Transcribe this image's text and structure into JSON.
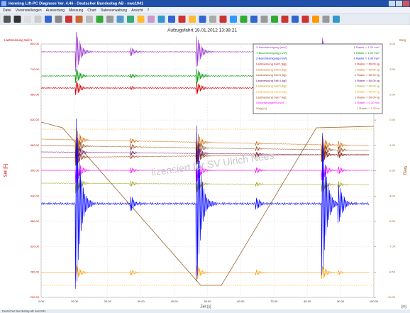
{
  "window": {
    "title": "Henning Lift-PC Diagnose Ver. 4.46 - Deutscher Bundestag AB - nws1941",
    "menu": [
      "Datei",
      "Voreinstellungen",
      "Auswertung",
      "Messung",
      "Chart",
      "Datenverwaltung",
      "Ansicht",
      "?"
    ],
    "status": "Deutscher Bundestag AB nws1941"
  },
  "chart": {
    "title": "Aufzugsfahrt 19.01.2012 13:38:21",
    "watermark": "lizensiert für SV Ulrich Nees",
    "left_label": "Lastmessung Seil 1",
    "right_label": "Weg",
    "y_axis_name": "Seil [F]",
    "y2_axis_name": "Weg",
    "x_label": "Zeit [s]",
    "x_unit": "[s]",
    "y2_unit": "[m]",
    "xlim": [
      0,
      100
    ],
    "ylim": [
      200,
      800
    ],
    "y2lim": [
      -10,
      5
    ],
    "xticks": [
      {
        "value": 0,
        "label": "0.00"
      },
      {
        "value": 10,
        "label": "10.00"
      },
      {
        "value": 20,
        "label": "20.00"
      },
      {
        "value": 30,
        "label": "30.00"
      },
      {
        "value": 40,
        "label": "40.00"
      },
      {
        "value": 50,
        "label": "50.00"
      },
      {
        "value": 60,
        "label": "60.00"
      },
      {
        "value": 70,
        "label": "70.00"
      },
      {
        "value": 80,
        "label": "80.00"
      },
      {
        "value": 90,
        "label": "90.00"
      },
      {
        "value": 100,
        "label": "100.00"
      }
    ],
    "yticks": [
      {
        "value": 800,
        "label": "800.00"
      },
      {
        "value": 740,
        "label": "740.00"
      },
      {
        "value": 680,
        "label": "680.00"
      },
      {
        "value": 620,
        "label": "620.00"
      },
      {
        "value": 560,
        "label": "560.00"
      },
      {
        "value": 500,
        "label": "500.00"
      },
      {
        "value": 440,
        "label": "440.00"
      },
      {
        "value": 380,
        "label": "380.00"
      },
      {
        "value": 320,
        "label": "320.00"
      },
      {
        "value": 260,
        "label": "260.00"
      },
      {
        "value": 200,
        "label": "200.00"
      }
    ],
    "y2ticks": [
      {
        "value": 5,
        "label": "5.00"
      },
      {
        "value": 3.5,
        "label": "3.50"
      },
      {
        "value": 2,
        "label": "2.00"
      },
      {
        "value": 0.5,
        "label": "0.50"
      },
      {
        "value": -1,
        "label": "-1.00"
      },
      {
        "value": -2.5,
        "label": "-2.50"
      },
      {
        "value": -4,
        "label": "-4.00"
      },
      {
        "value": -5.5,
        "label": "-5.50"
      },
      {
        "value": -7,
        "label": "-7.00"
      },
      {
        "value": -8.5,
        "label": "-8.50"
      },
      {
        "value": -10,
        "label": "-10.00"
      }
    ],
    "grid": true,
    "legend": [
      {
        "name": "X-Beschleunigung [m/s²]",
        "scale": "1 Raster = 1.00 m/s²",
        "color": "#9933cc"
      },
      {
        "name": "Y-Beschleunigung [m/s²]",
        "scale": "1 Raster = 1.00 m/s²",
        "color": "#009900"
      },
      {
        "name": "Z-Beschleunigung [m/s²]",
        "scale": "1 Raster = 1.00 m/s²",
        "color": "#0000ff"
      },
      {
        "name": "Lastmessung Seil 1 [kg]",
        "scale": "1 Raster = 60.00 kg",
        "color": "#cc0000"
      },
      {
        "name": "Lastmessung Seil 2 [kg]",
        "scale": "1 Raster = 60.00 kg",
        "color": "#cc6600"
      },
      {
        "name": "Lastmessung Seil 3 [kg]",
        "scale": "1 Raster = 60.00 kg",
        "color": "#8b4513"
      },
      {
        "name": "Lastmessung Seil 4 [kg]",
        "scale": "1 Raster = 60.00 kg",
        "color": "#660066"
      },
      {
        "name": "Lastmessung Seil 5 [kg]",
        "scale": "1 Raster = 60.00 kg",
        "color": "#999900"
      },
      {
        "name": "Lastmessung Seil 6 [kg]",
        "scale": "1 Raster = 60.00 kg",
        "color": "#ff9900"
      },
      {
        "name": "Lastmessung Seil 7 [kg]",
        "scale": "1 Raster = 60.00 kg",
        "color": "#993300"
      },
      {
        "name": "Geschwindigkeit [m/s]",
        "scale": "1 Raster = 0.20 m/s",
        "color": "#ff00ff"
      },
      {
        "name": "Weg [m]",
        "scale": "1 Raster = 1.50 m",
        "color": "#996633"
      }
    ]
  }
}
